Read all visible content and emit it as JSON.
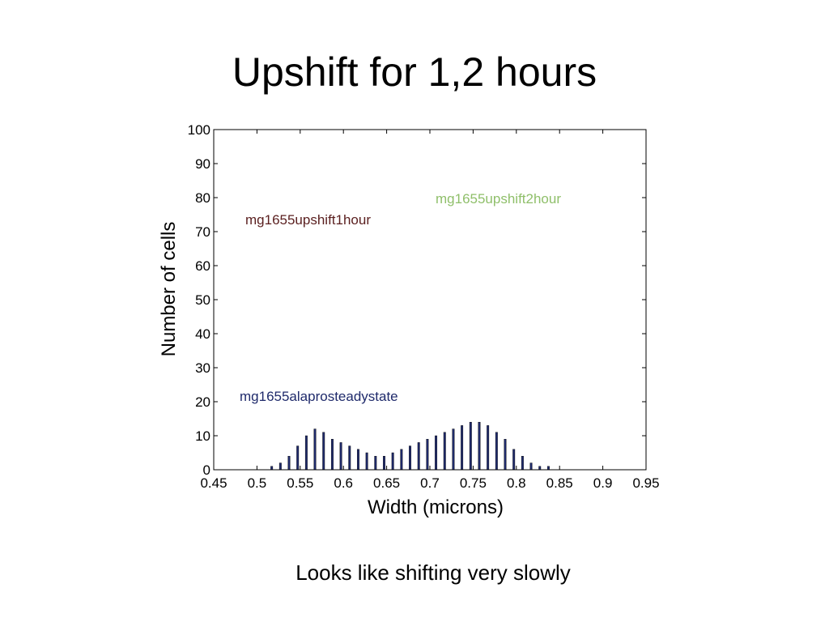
{
  "slide": {
    "title": "Upshift for 1,2 hours",
    "caption": "Looks like shifting very slowly"
  },
  "chart_data": {
    "type": "bar",
    "title": "",
    "xlabel": "Width (microns)",
    "ylabel": "Number of cells",
    "xlim": [
      0.45,
      0.95
    ],
    "ylim": [
      0,
      100
    ],
    "xticks": [
      "0.45",
      "0.5",
      "0.55",
      "0.6",
      "0.65",
      "0.7",
      "0.75",
      "0.8",
      "0.85",
      "0.9",
      "0.95"
    ],
    "yticks": [
      "0",
      "10",
      "20",
      "30",
      "40",
      "50",
      "60",
      "70",
      "80",
      "90",
      "100"
    ],
    "grid": false,
    "x": [
      0.52,
      0.53,
      0.54,
      0.55,
      0.56,
      0.57,
      0.58,
      0.59,
      0.6,
      0.61,
      0.62,
      0.63,
      0.64,
      0.65,
      0.66,
      0.67,
      0.68,
      0.69,
      0.7,
      0.71,
      0.72,
      0.73,
      0.74,
      0.75,
      0.76,
      0.77,
      0.78,
      0.79,
      0.8,
      0.81,
      0.82,
      0.83,
      0.84,
      0.85,
      0.86,
      0.87,
      0.88,
      0.89,
      0.9
    ],
    "series": [
      {
        "name": "mg1655alaprosteadystate",
        "color": "#1f2a6b",
        "values": [
          1,
          2,
          4,
          7,
          10,
          12,
          11,
          9,
          8,
          7,
          6,
          5,
          4,
          4,
          5,
          6,
          7,
          8,
          9,
          10,
          11,
          12,
          13,
          14,
          14,
          13,
          11,
          9,
          6,
          4,
          2,
          1,
          1,
          0,
          0,
          0,
          0,
          0,
          0
        ]
      },
      {
        "name": "mg1655upshift1hour",
        "color": "#5a1f1f",
        "values": [
          0,
          0,
          0,
          0,
          0,
          0,
          0,
          0,
          0,
          0,
          0,
          0,
          0,
          0,
          0,
          0,
          0,
          0,
          0,
          0,
          0,
          0,
          0,
          0,
          0,
          0,
          0,
          0,
          0,
          0,
          0,
          0,
          0,
          0,
          0,
          0,
          0,
          0,
          0
        ]
      },
      {
        "name": "mg1655upshift2hour",
        "color": "#8fbf6a",
        "values": [
          0,
          0,
          0,
          0,
          0,
          0,
          0,
          0,
          0,
          0,
          0,
          0,
          0,
          0,
          0,
          0,
          0,
          0,
          0,
          0,
          0,
          0,
          0,
          0,
          0,
          0,
          0,
          0,
          0,
          0,
          0,
          0,
          0,
          0,
          0,
          0,
          0,
          0,
          0
        ]
      }
    ]
  }
}
